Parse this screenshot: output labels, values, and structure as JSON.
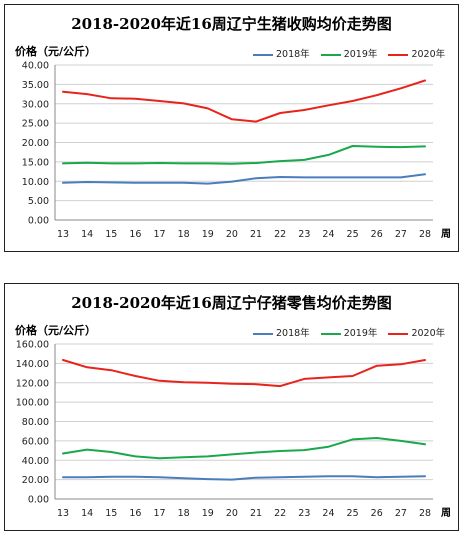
{
  "chart_data": [
    {
      "type": "line",
      "title": "2018-2020年近16周辽宁生猪收购均价走势图",
      "ylabel": "价格（元/公斤）",
      "xlabel": "周",
      "x": [
        "13",
        "14",
        "15",
        "16",
        "17",
        "18",
        "19",
        "20",
        "21",
        "22",
        "23",
        "24",
        "25",
        "26",
        "27",
        "28"
      ],
      "ylim": [
        0,
        40
      ],
      "yticks": [
        "0.00",
        "5.00",
        "10.00",
        "15.00",
        "20.00",
        "25.00",
        "30.00",
        "35.00",
        "40.00"
      ],
      "grid": true,
      "legend_position": "top-right",
      "series": [
        {
          "name": "2018年",
          "color": "#4a7ebb",
          "values": [
            9.6,
            9.8,
            9.7,
            9.6,
            9.6,
            9.6,
            9.4,
            9.9,
            10.8,
            11.1,
            11.0,
            11.0,
            11.0,
            11.0,
            11.0,
            11.8
          ]
        },
        {
          "name": "2019年",
          "color": "#1aa84a",
          "values": [
            14.6,
            14.8,
            14.6,
            14.6,
            14.7,
            14.6,
            14.6,
            14.5,
            14.7,
            15.2,
            15.5,
            16.8,
            19.1,
            18.9,
            18.8,
            19.0
          ]
        },
        {
          "name": "2020年",
          "color": "#e8231c",
          "values": [
            33.1,
            32.5,
            31.4,
            31.3,
            30.7,
            30.1,
            28.8,
            26.0,
            25.4,
            27.6,
            28.4,
            29.6,
            30.7,
            32.2,
            34.0,
            36.0
          ]
        }
      ]
    },
    {
      "type": "line",
      "title": "2018-2020年近16周辽宁仔猪零售均价走势图",
      "ylabel": "价格（元/公斤）",
      "xlabel": "周",
      "x": [
        "13",
        "14",
        "15",
        "16",
        "17",
        "18",
        "19",
        "20",
        "21",
        "22",
        "23",
        "24",
        "25",
        "26",
        "27",
        "28"
      ],
      "ylim": [
        0,
        160
      ],
      "yticks": [
        "0.00",
        "20.00",
        "40.00",
        "60.00",
        "80.00",
        "100.00",
        "120.00",
        "140.00",
        "160.00"
      ],
      "grid": true,
      "legend_position": "top-right",
      "series": [
        {
          "name": "2018年",
          "color": "#4a7ebb",
          "values": [
            22.5,
            22.5,
            23.0,
            23.0,
            22.5,
            21.5,
            20.5,
            20.0,
            22.0,
            22.5,
            23.0,
            23.5,
            23.5,
            22.5,
            23.0,
            23.5
          ]
        },
        {
          "name": "2019年",
          "color": "#1aa84a",
          "values": [
            47.0,
            51.0,
            48.5,
            44.0,
            42.0,
            43.0,
            44.0,
            46.0,
            48.0,
            49.5,
            50.5,
            54.0,
            61.5,
            63.0,
            60.0,
            56.5
          ]
        },
        {
          "name": "2020年",
          "color": "#e8231c",
          "values": [
            143.5,
            136.0,
            133.0,
            127.0,
            122.0,
            120.5,
            120.0,
            119.0,
            118.5,
            116.5,
            124.0,
            125.5,
            127.0,
            137.5,
            139.0,
            143.5
          ]
        }
      ]
    }
  ]
}
